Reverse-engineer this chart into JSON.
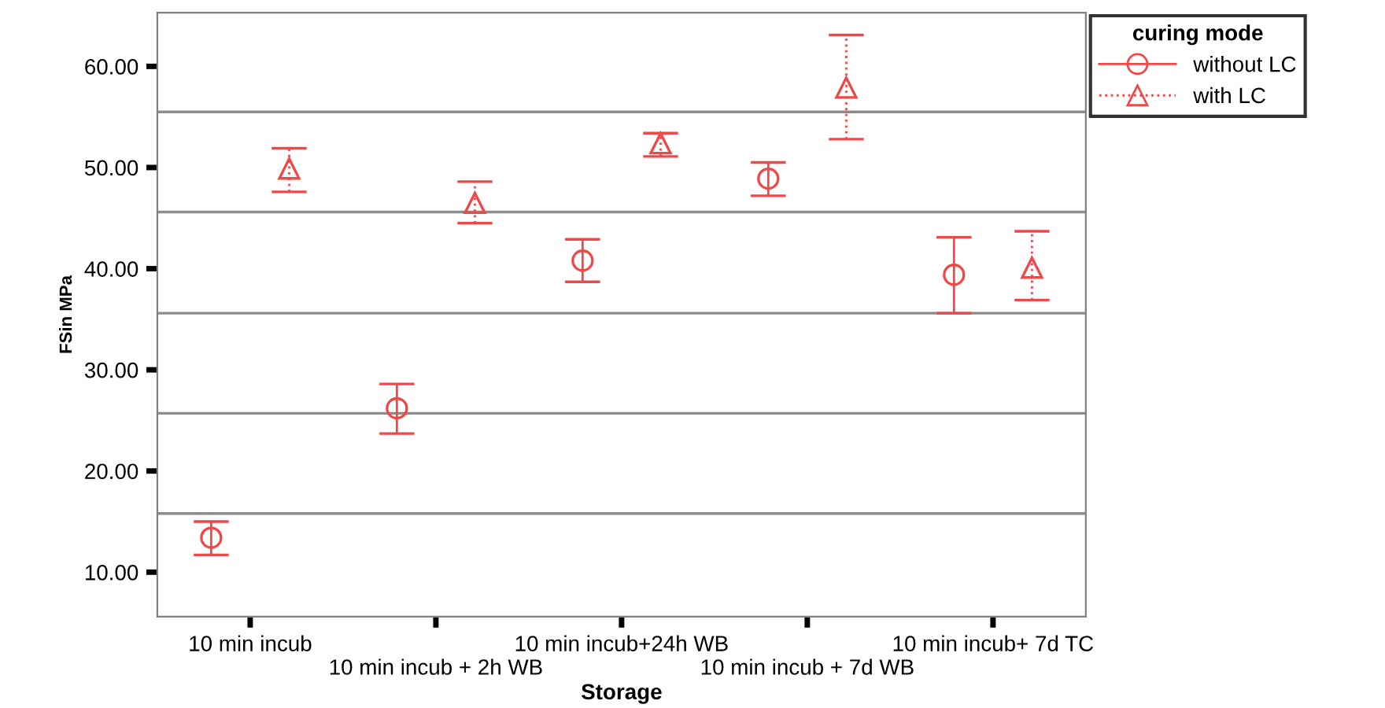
{
  "chart_data": {
    "type": "scatter",
    "xlabel": "Storage",
    "ylabel": "FSin MPa",
    "legend_title": "curing mode",
    "categories": [
      "10 min incub",
      "10 min incub + 2h WB",
      "10 min incub+24h WB",
      "10 min incub + 7d WB",
      "10 min incub+ 7d TC"
    ],
    "series": [
      {
        "name": "without LC",
        "color": "#f04848",
        "marker": "circle",
        "line_style": "solid",
        "values": [
          13.4,
          26.2,
          40.8,
          48.9,
          39.4
        ],
        "errors": [
          [
            11.7,
            15.0
          ],
          [
            23.7,
            28.6
          ],
          [
            38.7,
            42.9
          ],
          [
            47.2,
            50.5
          ],
          [
            35.6,
            43.1
          ]
        ]
      },
      {
        "name": "with LC",
        "color": "#f04848",
        "marker": "triangle",
        "line_style": "dotted",
        "values": [
          49.9,
          46.5,
          52.4,
          57.9,
          40.1
        ],
        "errors": [
          [
            47.6,
            51.9
          ],
          [
            44.5,
            48.6
          ],
          [
            51.1,
            53.4
          ],
          [
            52.8,
            63.1
          ],
          [
            36.9,
            43.7
          ]
        ]
      }
    ],
    "ylim": [
      5.6,
      65.3
    ],
    "yticks": [
      {
        "value": 10,
        "label": "10.00"
      },
      {
        "value": 20,
        "label": "20.00"
      },
      {
        "value": 30,
        "label": "30.00"
      },
      {
        "value": 40,
        "label": "40.00"
      },
      {
        "value": 50,
        "label": "50.00"
      },
      {
        "value": 60,
        "label": "60.00"
      }
    ],
    "ref_lines": [
      {
        "axis": "y",
        "value": 15.8,
        "color": "#8c8c8c"
      },
      {
        "axis": "y",
        "value": 25.7,
        "color": "#8c8c8c"
      },
      {
        "axis": "y",
        "value": 35.6,
        "color": "#8c8c8c"
      },
      {
        "axis": "y",
        "value": 45.6,
        "color": "#8c8c8c"
      },
      {
        "axis": "y",
        "value": 55.5,
        "color": "#8c8c8c"
      }
    ],
    "grid": false,
    "legend": "top right"
  }
}
